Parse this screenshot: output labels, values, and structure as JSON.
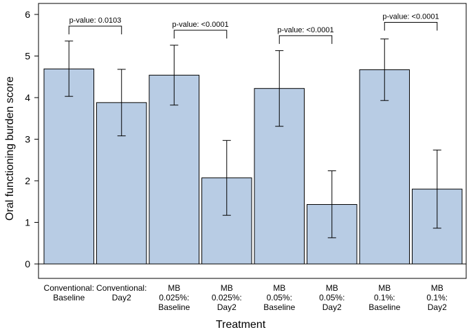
{
  "chart_data": {
    "type": "bar",
    "title": "",
    "xlabel": "Treatment",
    "ylabel": "Oral functioning burden score",
    "ylim": [
      0,
      6.3
    ],
    "yticks": [
      0,
      1,
      2,
      3,
      4,
      5,
      6
    ],
    "bar_color": "#b8cce4",
    "bar_edge_color": "#000000",
    "categories": [
      [
        "Conventional:",
        "Baseline"
      ],
      [
        "Conventional:",
        "Day2"
      ],
      [
        "MB",
        "0.025%:",
        "Baseline"
      ],
      [
        "MB",
        "0.025%:",
        "Day2"
      ],
      [
        "MB",
        "0.05%:",
        "Baseline"
      ],
      [
        "MB",
        "0.05%:",
        "Day2"
      ],
      [
        "MB",
        "0.1%:",
        "Baseline"
      ],
      [
        "MB",
        "0.1%:",
        "Day2"
      ]
    ],
    "values": [
      4.69,
      3.88,
      4.54,
      2.07,
      4.22,
      1.43,
      4.67,
      1.8
    ],
    "error_low": [
      4.03,
      3.08,
      3.82,
      1.17,
      3.31,
      0.63,
      3.93,
      0.86
    ],
    "error_high": [
      5.36,
      4.68,
      5.26,
      2.97,
      5.13,
      2.24,
      5.41,
      2.74
    ],
    "annotations": [
      {
        "from": 0,
        "to": 1,
        "y": 5.72,
        "label": "p-value: 0.0103"
      },
      {
        "from": 2,
        "to": 3,
        "y": 5.62,
        "label": "p-value: <0.0001"
      },
      {
        "from": 4,
        "to": 5,
        "y": 5.49,
        "label": "p-value: <0.0001"
      },
      {
        "from": 6,
        "to": 7,
        "y": 5.81,
        "label": "p-value: <0.0001"
      }
    ]
  }
}
